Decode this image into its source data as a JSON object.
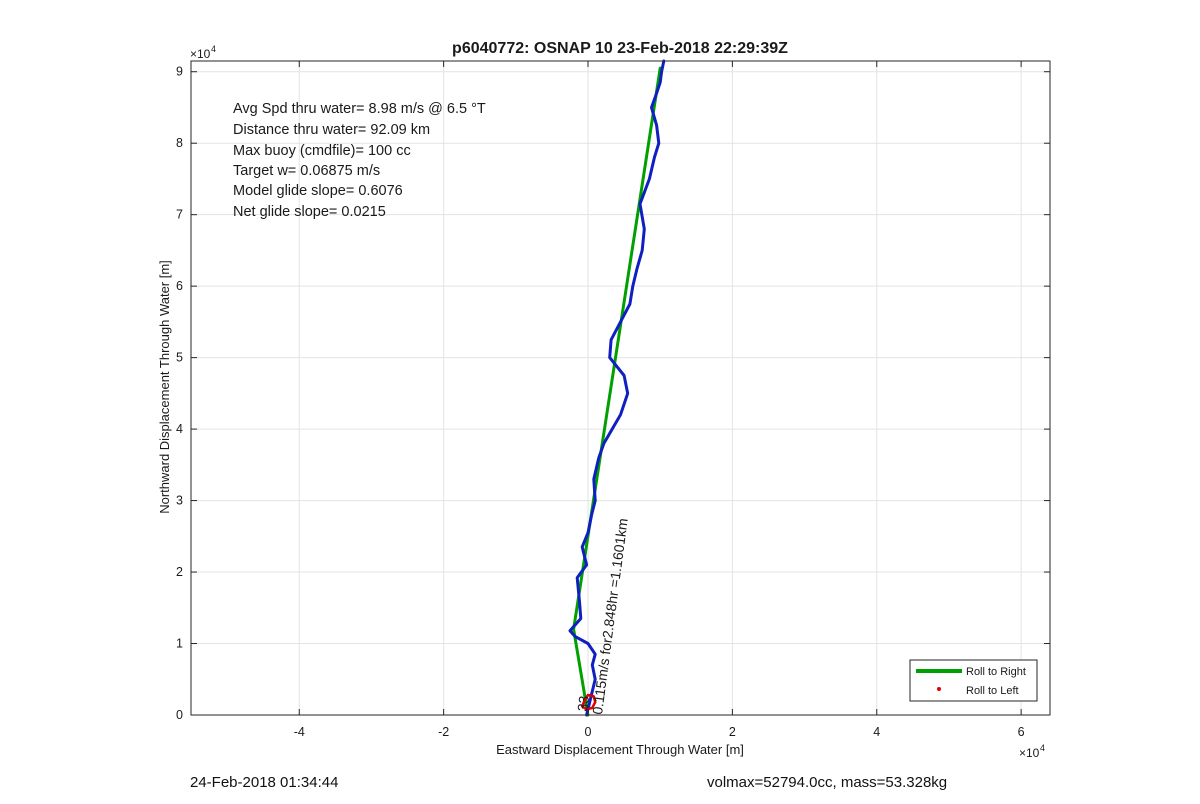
{
  "chart_data": {
    "type": "line",
    "title": "p6040772: OSNAP 10 23-Feb-2018 22:29:39Z",
    "xlabel": "Eastward Displacement Through Water [m]",
    "ylabel": "Northward Displacement Through Water [m]",
    "x_exponent_label": "×10",
    "x_exponent_power": "4",
    "y_exponent_label": "×10",
    "y_exponent_power": "4",
    "x_scale": 10000,
    "y_scale": 10000,
    "xlim": [
      -5.5,
      6.4
    ],
    "ylim": [
      0,
      9.15
    ],
    "x_ticks": [
      -4,
      -2,
      0,
      2,
      4,
      6
    ],
    "x_tick_labels": [
      "-4",
      "-2",
      "0",
      "2",
      "4",
      "6"
    ],
    "y_ticks": [
      0,
      1,
      2,
      3,
      4,
      5,
      6,
      7,
      8,
      9
    ],
    "y_tick_labels": [
      "0",
      "1",
      "2",
      "3",
      "4",
      "5",
      "6",
      "7",
      "8",
      "9"
    ],
    "grid": true,
    "legend": {
      "placement": "bottom-right",
      "entries": [
        {
          "label": "Roll to Right",
          "color": "#00a000",
          "style": "line"
        },
        {
          "label": "Roll to Left",
          "color": "#e00000",
          "style": "point"
        }
      ]
    },
    "annotations": [
      "Avg Spd thru water=  8.98 m/s @   6.5 °T",
      "Distance thru water= 92.09 km",
      "Max buoy (cmdfile)= 100 cc",
      "Target w= 0.06875 m/s",
      "Model glide slope= 0.6076",
      "Net glide slope= 0.0215"
    ],
    "current_label": "0.115m/s for2.848hr =1.1601km",
    "current_label_overlap": "33",
    "series": [
      {
        "color": "#00a000",
        "x": [
          0,
          -0.2,
          1.0
        ],
        "y": [
          0,
          1.2,
          9.05
        ]
      },
      {
        "color": "#1020c0",
        "x": [
          -0.02,
          0.04,
          0.1,
          0.06,
          0.1,
          0.0,
          -0.18,
          -0.25,
          -0.1,
          -0.12,
          -0.15,
          -0.02,
          -0.08,
          0.0,
          0.05,
          0.1,
          0.08,
          0.15,
          0.22,
          0.45,
          0.55,
          0.5,
          0.3,
          0.32,
          0.45,
          0.58,
          0.62,
          0.68,
          0.75,
          0.78,
          0.72,
          0.85,
          0.92,
          0.98,
          0.95,
          0.88,
          0.95,
          1.0,
          1.02,
          1.05
        ],
        "y": [
          0.0,
          0.25,
          0.5,
          0.7,
          0.85,
          1.0,
          1.1,
          1.18,
          1.35,
          1.6,
          1.92,
          2.1,
          2.35,
          2.55,
          2.8,
          3.0,
          3.3,
          3.6,
          3.8,
          4.2,
          4.5,
          4.75,
          5.0,
          5.25,
          5.5,
          5.75,
          6.0,
          6.25,
          6.5,
          6.8,
          7.15,
          7.5,
          7.8,
          8.0,
          8.25,
          8.5,
          8.7,
          8.85,
          9.0,
          9.15
        ]
      },
      {
        "color": "#e00000",
        "x": [
          -0.05,
          0.0,
          0.08,
          0.1,
          0.06,
          -0.02,
          -0.08,
          -0.05
        ],
        "y": [
          0.2,
          0.28,
          0.26,
          0.18,
          0.1,
          0.08,
          0.12,
          0.2
        ]
      }
    ]
  },
  "footer": {
    "timestamp": "24-Feb-2018 01:34:44",
    "vol_mass": "volmax=52794.0cc, mass=53.328kg"
  }
}
